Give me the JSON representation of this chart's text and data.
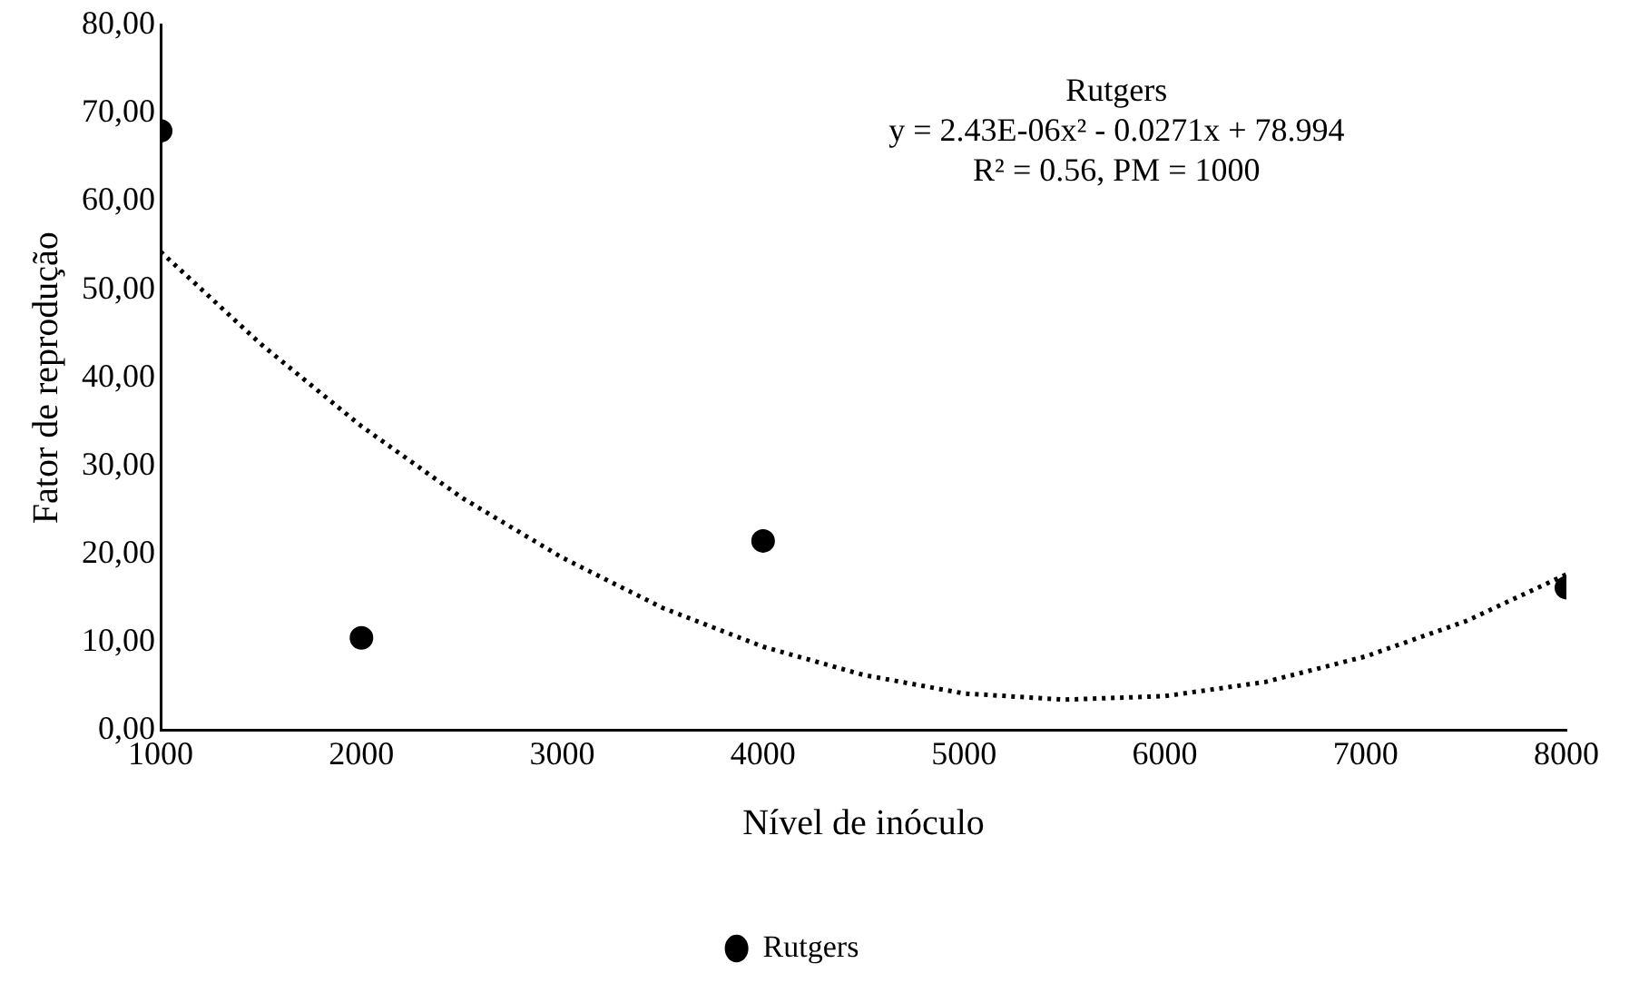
{
  "chart_data": {
    "type": "scatter",
    "xlabel": "Nível de inóculo",
    "ylabel": "Fator de reprodução",
    "xlim": [
      1000,
      8000
    ],
    "xticks": [
      1000,
      2000,
      3000,
      4000,
      5000,
      6000,
      7000,
      8000
    ],
    "ylim": [
      0,
      80
    ],
    "yticks": [
      {
        "value": 0,
        "label": "0,00"
      },
      {
        "value": 10,
        "label": "10,00"
      },
      {
        "value": 20,
        "label": "20,00"
      },
      {
        "value": 30,
        "label": "30,00"
      },
      {
        "value": 40,
        "label": "40,00"
      },
      {
        "value": 50,
        "label": "50,00"
      },
      {
        "value": 60,
        "label": "60,00"
      },
      {
        "value": 70,
        "label": "70,00"
      },
      {
        "value": 80,
        "label": "80,00"
      }
    ],
    "grid": false,
    "legend": "bottom",
    "marker": "circle",
    "series": [
      {
        "name": "Rutgers",
        "color": "#000000",
        "x": [
          1000,
          2000,
          4000,
          8000
        ],
        "values": [
          68,
          10.5,
          21.5,
          16.2
        ]
      },
      {
        "type": "line",
        "line_style": "dotted",
        "marker": "none",
        "color": "#000000",
        "x": [
          1000,
          1500,
          2000,
          2500,
          3000,
          3500,
          4000,
          4500,
          5000,
          5500,
          6000,
          6500,
          7000,
          7500,
          8000
        ],
        "values": [
          54.3,
          43.8,
          34.5,
          26.4,
          19.6,
          13.9,
          9.5,
          6.3,
          4.2,
          3.5,
          3.9,
          5.5,
          8.4,
          12.4,
          17.7
        ]
      }
    ],
    "annotations": [
      "Rutgers",
      "y = 2.43E-06x² - 0.0271x + 78.994",
      "R² = 0.56, PM = 1000"
    ]
  }
}
